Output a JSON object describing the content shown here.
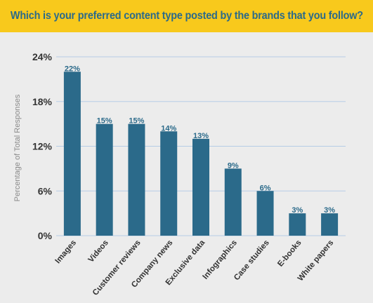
{
  "chart_data": {
    "type": "bar",
    "title": "Which is your preferred content type posted by the brands that you follow?",
    "ylabel": "Percentage of Total Responses",
    "xlabel": "",
    "categories": [
      "Images",
      "Videos",
      "Customer reviews",
      "Company news",
      "Exclusive data",
      "Infographics",
      "Case studies",
      "E-books",
      "White papers"
    ],
    "values": [
      22,
      15,
      15,
      14,
      13,
      9,
      6,
      3,
      3
    ],
    "value_labels": [
      "22%",
      "15%",
      "15%",
      "14%",
      "13%",
      "9%",
      "6%",
      "3%",
      "3%"
    ],
    "yticks": [
      0,
      6,
      12,
      18,
      24
    ],
    "ytick_labels": [
      "0%",
      "6%",
      "12%",
      "18%",
      "24%"
    ],
    "ylim": [
      0,
      24
    ],
    "grid": true,
    "legend": "none",
    "colors": {
      "bar": "#2b6a8a",
      "title_bg": "#f8c91c",
      "title_text": "#2b6a8a",
      "grid": "#b6cde6",
      "axis_text": "#333333",
      "ylabel_text": "#8a8a8a"
    }
  }
}
